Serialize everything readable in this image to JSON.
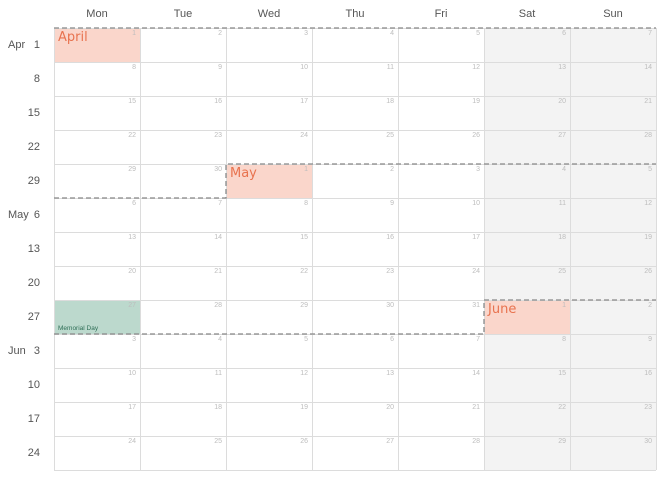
{
  "day_headers": [
    "Mon",
    "Tue",
    "Wed",
    "Thu",
    "Fri",
    "Sat",
    "Sun"
  ],
  "weeks": [
    {
      "month": "Apr",
      "day": "1",
      "dates": [
        "1",
        "2",
        "3",
        "4",
        "5",
        "6",
        "7"
      ]
    },
    {
      "month": "",
      "day": "8",
      "dates": [
        "8",
        "9",
        "10",
        "11",
        "12",
        "13",
        "14"
      ]
    },
    {
      "month": "",
      "day": "15",
      "dates": [
        "15",
        "16",
        "17",
        "18",
        "19",
        "20",
        "21"
      ]
    },
    {
      "month": "",
      "day": "22",
      "dates": [
        "22",
        "23",
        "24",
        "25",
        "26",
        "27",
        "28"
      ]
    },
    {
      "month": "",
      "day": "29",
      "dates": [
        "29",
        "30",
        "1",
        "2",
        "3",
        "4",
        "5"
      ]
    },
    {
      "month": "May",
      "day": "6",
      "dates": [
        "6",
        "7",
        "8",
        "9",
        "10",
        "11",
        "12"
      ]
    },
    {
      "month": "",
      "day": "13",
      "dates": [
        "13",
        "14",
        "15",
        "16",
        "17",
        "18",
        "19"
      ]
    },
    {
      "month": "",
      "day": "20",
      "dates": [
        "20",
        "21",
        "22",
        "23",
        "24",
        "25",
        "26"
      ]
    },
    {
      "month": "",
      "day": "27",
      "dates": [
        "27",
        "28",
        "29",
        "30",
        "31",
        "1",
        "2"
      ]
    },
    {
      "month": "Jun",
      "day": "3",
      "dates": [
        "3",
        "4",
        "5",
        "6",
        "7",
        "8",
        "9"
      ]
    },
    {
      "month": "",
      "day": "10",
      "dates": [
        "10",
        "11",
        "12",
        "13",
        "14",
        "15",
        "16"
      ]
    },
    {
      "month": "",
      "day": "17",
      "dates": [
        "17",
        "18",
        "19",
        "20",
        "21",
        "22",
        "23"
      ]
    },
    {
      "month": "",
      "day": "24",
      "dates": [
        "24",
        "25",
        "26",
        "27",
        "28",
        "29",
        "30"
      ]
    }
  ],
  "months": [
    {
      "name": "April",
      "start_week": 0,
      "start_col": 0
    },
    {
      "name": "May",
      "start_week": 4,
      "start_col": 2
    },
    {
      "name": "June",
      "start_week": 8,
      "start_col": 5
    }
  ],
  "holidays": [
    {
      "label": "Memorial Day",
      "week": 8,
      "col": 0
    }
  ],
  "colors": {
    "month_band": "#fad6cb",
    "month_text": "#e8734f",
    "holiday_band": "#bcd9cd",
    "holiday_text": "#2f6f57",
    "weekend_bg": "#f3f3f3",
    "grid": "#dcdcdc",
    "month_boundary": "#888888"
  }
}
